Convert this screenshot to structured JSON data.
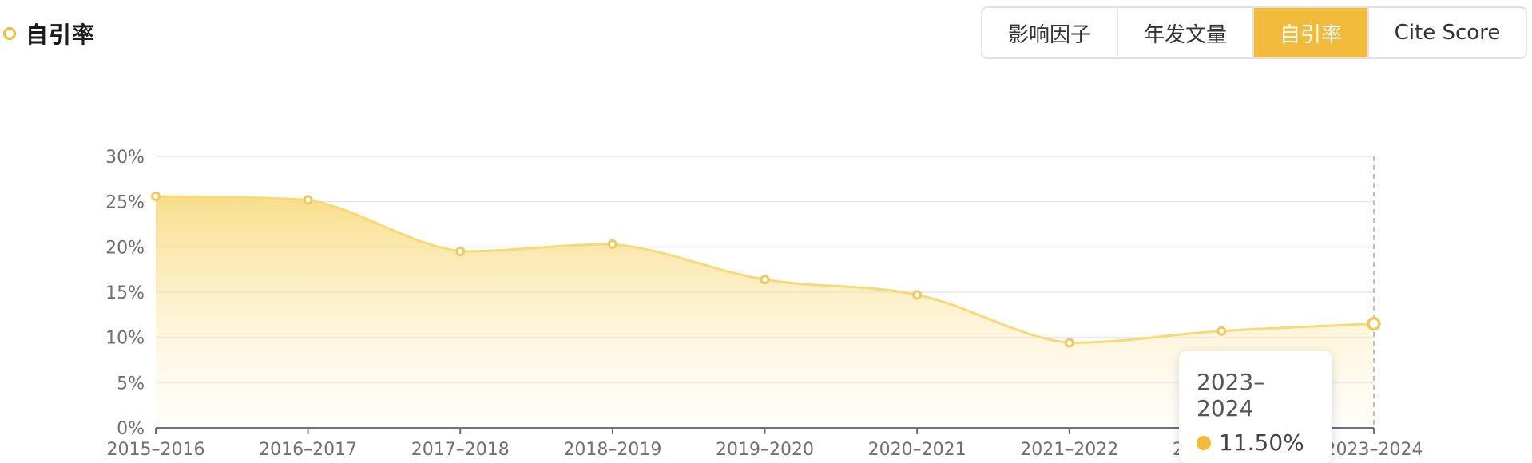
{
  "header": {
    "title": "自引率"
  },
  "tabs": [
    {
      "label": "影响因子",
      "active": false
    },
    {
      "label": "年发文量",
      "active": false
    },
    {
      "label": "自引率",
      "active": true
    },
    {
      "label": "Cite Score",
      "active": false
    }
  ],
  "colors": {
    "accent": "#F3BB3C",
    "line": "#F8DA75",
    "point": "#F3C75A",
    "grid": "#E4E6F2",
    "axis": "#6E7079"
  },
  "chart_data": {
    "type": "area",
    "categories": [
      "2015–2016",
      "2016–2017",
      "2017–2018",
      "2018–2019",
      "2019–2020",
      "2020–2021",
      "2021–2022",
      "2022–2023",
      "2023–2024"
    ],
    "series": [
      {
        "values": [
          25.6,
          25.2,
          19.5,
          20.3,
          16.4,
          14.7,
          9.4,
          10.7,
          11.5
        ]
      }
    ],
    "ylim": [
      0,
      30
    ],
    "yticks": [
      "0%",
      "5%",
      "10%",
      "15%",
      "20%",
      "25%",
      "30%"
    ],
    "grid": true,
    "smooth": true
  },
  "tooltip": {
    "title": "2023–2024",
    "value": "11.50%"
  }
}
